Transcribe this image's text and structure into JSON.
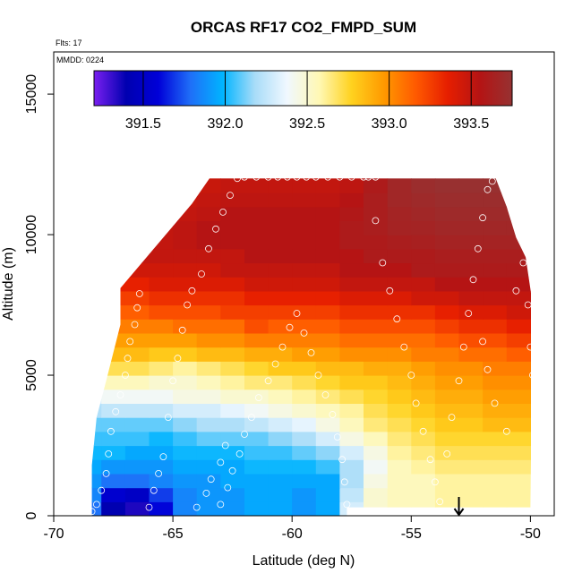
{
  "chart_data": {
    "type": "heatmap",
    "title": "ORCAS RF17 CO2_FMPD_SUM",
    "flights_label": "Flts: 17",
    "date_label": "MMDD: 0224",
    "xlabel": "Latitude (deg N)",
    "ylabel": "Altitude (m)",
    "xlim": [
      -70,
      -49
    ],
    "ylim": [
      0,
      16500
    ],
    "x_ticks": [
      -70,
      -65,
      -60,
      -55,
      -50
    ],
    "x_tick_labels": [
      "-70",
      "-65",
      "-60",
      "-55",
      "-50"
    ],
    "y_ticks": [
      0,
      5000,
      10000,
      15000
    ],
    "y_tick_labels": [
      "0",
      "5000",
      "10000",
      "15000"
    ],
    "colorbar": {
      "min": 391.2,
      "max": 393.75,
      "ticks": [
        391.5,
        392.0,
        392.5,
        393.0,
        393.5
      ],
      "tick_labels": [
        "391.5",
        "392.0",
        "392.5",
        "393.0",
        "393.5"
      ],
      "colors": [
        "#7a1ff0",
        "#0000b0",
        "#0000d8",
        "#1f6ff8",
        "#00b4ff",
        "#a8dcf8",
        "#f0f8ff",
        "#fff8b4",
        "#ffd21f",
        "#ff9a00",
        "#ff5a00",
        "#e61e00",
        "#b41414",
        "#963232"
      ]
    },
    "field_grid": {
      "lat": [
        -68.5,
        -67.5,
        -66.5,
        -65.5,
        -64.5,
        -63.5,
        -62.5,
        -61.5,
        -60.5,
        -59.5,
        -58.5,
        -57.5,
        -56.5,
        -55.5,
        -54.5,
        -53.5,
        -52.5,
        -51.5,
        -50.5
      ],
      "alt": [
        250,
        750,
        1250,
        1750,
        2250,
        2750,
        3250,
        3750,
        4250,
        4750,
        5250,
        5750,
        6250,
        6750,
        7250,
        7750,
        8250,
        8750,
        9250,
        9750,
        10250,
        10750,
        11250,
        11750
      ],
      "co2": [
        [
          391.8,
          391.4,
          391.35,
          391.6,
          391.85,
          391.9,
          391.9,
          391.95,
          391.95,
          391.9,
          391.95,
          392.3,
          392.5,
          392.55,
          392.55,
          392.6,
          392.6,
          392.6,
          392.6
        ],
        [
          391.85,
          391.55,
          391.5,
          391.7,
          391.85,
          391.9,
          391.9,
          391.95,
          391.95,
          391.9,
          391.95,
          392.25,
          392.5,
          392.55,
          392.55,
          392.6,
          392.6,
          392.6,
          392.6
        ],
        [
          391.9,
          391.8,
          391.8,
          391.85,
          391.9,
          391.9,
          391.95,
          391.95,
          391.95,
          391.95,
          391.95,
          392.2,
          392.45,
          392.55,
          392.55,
          392.6,
          392.6,
          392.6,
          392.6
        ],
        [
          391.95,
          391.9,
          391.9,
          391.9,
          391.95,
          391.95,
          391.95,
          392.0,
          392.0,
          392.0,
          392.05,
          392.2,
          392.4,
          392.55,
          392.6,
          392.65,
          392.65,
          392.65,
          392.65
        ],
        [
          392.0,
          392.0,
          391.95,
          391.95,
          392.0,
          392.0,
          392.0,
          392.05,
          392.05,
          392.1,
          392.15,
          392.3,
          392.45,
          392.6,
          392.65,
          392.7,
          392.7,
          392.7,
          392.7
        ],
        [
          392.05,
          392.05,
          392.05,
          392.0,
          392.05,
          392.1,
          392.1,
          392.1,
          392.15,
          392.2,
          392.3,
          392.45,
          392.55,
          392.65,
          392.7,
          392.75,
          392.75,
          392.75,
          392.75
        ],
        [
          392.1,
          392.1,
          392.1,
          392.1,
          392.15,
          392.2,
          392.2,
          392.25,
          392.3,
          392.35,
          392.45,
          392.55,
          392.65,
          392.7,
          392.75,
          392.8,
          392.8,
          392.85,
          392.85
        ],
        [
          392.2,
          392.25,
          392.25,
          392.25,
          392.3,
          392.3,
          392.35,
          392.4,
          392.45,
          392.5,
          392.55,
          392.6,
          392.7,
          392.75,
          392.8,
          392.85,
          392.85,
          392.9,
          392.9
        ],
        [
          392.3,
          392.4,
          392.4,
          392.4,
          392.45,
          392.45,
          392.5,
          392.5,
          392.55,
          392.6,
          392.65,
          392.7,
          392.75,
          392.8,
          392.85,
          392.9,
          392.9,
          392.95,
          392.95
        ],
        [
          392.5,
          392.55,
          392.55,
          392.5,
          392.5,
          392.55,
          392.6,
          392.65,
          392.65,
          392.7,
          392.75,
          392.8,
          392.8,
          392.85,
          392.9,
          392.95,
          392.95,
          393.0,
          393.0
        ],
        [
          392.7,
          392.7,
          392.7,
          392.65,
          392.6,
          392.65,
          392.7,
          392.75,
          392.8,
          392.8,
          392.85,
          392.85,
          392.9,
          392.9,
          392.95,
          393.0,
          393.0,
          393.05,
          393.05
        ],
        [
          392.85,
          392.85,
          392.85,
          392.8,
          392.8,
          392.85,
          392.85,
          392.9,
          392.9,
          392.95,
          392.95,
          393.0,
          393.0,
          393.0,
          393.05,
          393.05,
          393.1,
          393.1,
          393.15
        ],
        [
          392.95,
          392.95,
          392.95,
          392.95,
          392.95,
          393.0,
          393.0,
          393.05,
          393.05,
          393.05,
          393.05,
          393.1,
          393.1,
          393.1,
          393.1,
          393.15,
          393.2,
          393.2,
          393.25
        ],
        [
          393.05,
          393.05,
          393.05,
          393.05,
          393.1,
          393.1,
          393.1,
          393.2,
          393.15,
          393.15,
          393.15,
          393.2,
          393.2,
          393.2,
          393.2,
          393.25,
          393.3,
          393.3,
          393.35
        ],
        [
          393.15,
          393.15,
          393.15,
          393.2,
          393.2,
          393.2,
          393.25,
          393.25,
          393.25,
          393.25,
          393.25,
          393.3,
          393.3,
          393.3,
          393.3,
          393.35,
          393.4,
          393.4,
          393.45
        ],
        [
          393.25,
          393.25,
          393.25,
          393.3,
          393.3,
          393.3,
          393.3,
          393.35,
          393.35,
          393.35,
          393.35,
          393.4,
          393.4,
          393.4,
          393.45,
          393.45,
          393.5,
          393.5,
          393.5
        ],
        [
          393.35,
          393.35,
          393.35,
          393.4,
          393.4,
          393.4,
          393.4,
          393.45,
          393.45,
          393.45,
          393.45,
          393.5,
          393.5,
          393.5,
          393.5,
          393.55,
          393.55,
          393.55,
          393.55
        ],
        [
          393.45,
          393.45,
          393.45,
          393.45,
          393.45,
          393.45,
          393.5,
          393.5,
          393.5,
          393.5,
          393.5,
          393.55,
          393.55,
          393.55,
          393.6,
          393.6,
          393.6,
          393.6,
          393.6
        ],
        [
          393.5,
          393.5,
          393.5,
          393.5,
          393.5,
          393.5,
          393.5,
          393.55,
          393.55,
          393.55,
          393.55,
          393.55,
          393.6,
          393.6,
          393.6,
          393.62,
          393.62,
          393.62,
          393.62
        ],
        [
          393.5,
          393.5,
          393.5,
          393.5,
          393.52,
          393.55,
          393.55,
          393.55,
          393.55,
          393.55,
          393.55,
          393.6,
          393.6,
          393.62,
          393.63,
          393.65,
          393.65,
          393.65,
          393.65
        ],
        [
          393.5,
          393.5,
          393.5,
          393.5,
          393.52,
          393.55,
          393.55,
          393.55,
          393.55,
          393.55,
          393.55,
          393.6,
          393.62,
          393.65,
          393.66,
          393.68,
          393.68,
          393.68,
          393.68
        ],
        [
          393.5,
          393.5,
          393.5,
          393.5,
          393.5,
          393.52,
          393.55,
          393.55,
          393.55,
          393.55,
          393.55,
          393.58,
          393.62,
          393.66,
          393.68,
          393.7,
          393.7,
          393.7,
          393.7
        ],
        [
          393.45,
          393.45,
          393.45,
          393.45,
          393.48,
          393.5,
          393.52,
          393.52,
          393.52,
          393.52,
          393.52,
          393.55,
          393.62,
          393.68,
          393.7,
          393.72,
          393.72,
          393.72,
          393.72
        ],
        [
          393.4,
          393.4,
          393.4,
          393.4,
          393.45,
          393.48,
          393.5,
          393.5,
          393.5,
          393.5,
          393.5,
          393.52,
          393.6,
          393.68,
          393.72,
          393.74,
          393.74,
          393.74,
          393.74
        ]
      ],
      "coverage_polygon": [
        [
          -68.4,
          0
        ],
        [
          -57.7,
          0
        ],
        [
          -57.7,
          300
        ],
        [
          -50.0,
          300
        ],
        [
          -49.9,
          7500
        ],
        [
          -50.2,
          9200
        ],
        [
          -50.6,
          9900
        ],
        [
          -51.0,
          11000
        ],
        [
          -51.5,
          12100
        ],
        [
          -55.8,
          12100
        ],
        [
          -56.3,
          12200
        ],
        [
          -63.3,
          12200
        ],
        [
          -64.2,
          11100
        ],
        [
          -65.2,
          10100
        ],
        [
          -66.2,
          9100
        ],
        [
          -67.2,
          8100
        ],
        [
          -67.2,
          6800
        ],
        [
          -67.8,
          4800
        ],
        [
          -68.2,
          3500
        ],
        [
          -68.4,
          1800
        ]
      ]
    },
    "observations": [
      [
        -68.4,
        150
      ],
      [
        -68.2,
        400
      ],
      [
        -68.0,
        900
      ],
      [
        -67.8,
        1500
      ],
      [
        -67.7,
        2200
      ],
      [
        -67.6,
        3000
      ],
      [
        -67.4,
        3700
      ],
      [
        -67.2,
        4300
      ],
      [
        -67.0,
        5000
      ],
      [
        -66.9,
        5600
      ],
      [
        -66.8,
        6200
      ],
      [
        -66.6,
        6800
      ],
      [
        -66.5,
        7400
      ],
      [
        -66.4,
        7900
      ],
      [
        -66.0,
        300
      ],
      [
        -65.8,
        900
      ],
      [
        -65.6,
        1500
      ],
      [
        -65.4,
        2100
      ],
      [
        -65.2,
        3500
      ],
      [
        -65.0,
        4800
      ],
      [
        -64.8,
        5600
      ],
      [
        -64.6,
        6600
      ],
      [
        -64.4,
        7500
      ],
      [
        -64.2,
        8000
      ],
      [
        -63.8,
        8600
      ],
      [
        -63.5,
        9500
      ],
      [
        -63.2,
        10200
      ],
      [
        -62.9,
        10800
      ],
      [
        -62.6,
        11400
      ],
      [
        -62.3,
        12000
      ],
      [
        -62.0,
        12050
      ],
      [
        -61.5,
        12050
      ],
      [
        -61.0,
        12050
      ],
      [
        -60.6,
        12050
      ],
      [
        -60.2,
        12050
      ],
      [
        -59.8,
        12050
      ],
      [
        -59.4,
        12050
      ],
      [
        -59.0,
        12050
      ],
      [
        -58.5,
        12050
      ],
      [
        -58.0,
        12050
      ],
      [
        -57.5,
        12050
      ],
      [
        -57.0,
        12050
      ],
      [
        -56.5,
        12050
      ],
      [
        -63.0,
        400
      ],
      [
        -62.7,
        1000
      ],
      [
        -62.5,
        1600
      ],
      [
        -62.2,
        2200
      ],
      [
        -62.0,
        2900
      ],
      [
        -61.7,
        3500
      ],
      [
        -61.4,
        4200
      ],
      [
        -61.0,
        4800
      ],
      [
        -60.7,
        5400
      ],
      [
        -60.4,
        6000
      ],
      [
        -60.1,
        6700
      ],
      [
        -59.8,
        7200
      ],
      [
        -59.5,
        6500
      ],
      [
        -59.2,
        5800
      ],
      [
        -58.9,
        5000
      ],
      [
        -58.6,
        4300
      ],
      [
        -58.3,
        3600
      ],
      [
        -58.1,
        2800
      ],
      [
        -57.9,
        2000
      ],
      [
        -57.8,
        1200
      ],
      [
        -57.7,
        400
      ],
      [
        -64.0,
        300
      ],
      [
        -63.6,
        800
      ],
      [
        -63.4,
        1300
      ],
      [
        -63.0,
        1900
      ],
      [
        -62.8,
        2500
      ],
      [
        -56.8,
        12050
      ],
      [
        -56.5,
        10500
      ],
      [
        -56.2,
        9000
      ],
      [
        -55.9,
        8000
      ],
      [
        -55.6,
        7000
      ],
      [
        -55.3,
        6000
      ],
      [
        -55.0,
        5000
      ],
      [
        -54.8,
        4000
      ],
      [
        -54.5,
        3000
      ],
      [
        -54.2,
        2000
      ],
      [
        -54.0,
        1200
      ],
      [
        -53.8,
        500
      ],
      [
        -53.5,
        2200
      ],
      [
        -53.3,
        3500
      ],
      [
        -53.0,
        4800
      ],
      [
        -52.8,
        6000
      ],
      [
        -52.6,
        7200
      ],
      [
        -52.4,
        8400
      ],
      [
        -52.2,
        9500
      ],
      [
        -52.0,
        10600
      ],
      [
        -51.8,
        11600
      ],
      [
        -51.6,
        11900
      ],
      [
        -51.2,
        11900
      ],
      [
        -50.8,
        11200
      ],
      [
        -50.5,
        10200
      ],
      [
        -50.3,
        9000
      ],
      [
        -50.1,
        7500
      ],
      [
        -50.0,
        6000
      ],
      [
        -49.9,
        5000
      ],
      [
        -51.0,
        3000
      ],
      [
        -51.5,
        4000
      ],
      [
        -51.8,
        5200
      ],
      [
        -52.0,
        6200
      ],
      [
        -50.6,
        8000
      ]
    ],
    "marker": {
      "lat": -53.0,
      "alt": 0,
      "symbol": "down-arrow"
    }
  }
}
